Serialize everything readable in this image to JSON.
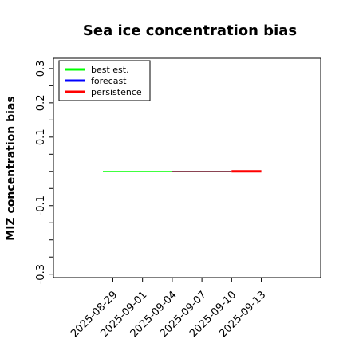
{
  "chart_data": {
    "type": "line",
    "title": "Sea ice concentration bias",
    "ylabel": "MIZ concentration bias",
    "xlabel": "",
    "ylim": [
      -0.31,
      0.33
    ],
    "y_ticks": [
      {
        "value": 0.3,
        "label": "0.3"
      },
      {
        "value": 0.25,
        "label": ""
      },
      {
        "value": 0.2,
        "label": "0.2"
      },
      {
        "value": 0.15,
        "label": ""
      },
      {
        "value": 0.1,
        "label": "0.1"
      },
      {
        "value": 0.05,
        "label": ""
      },
      {
        "value": 0.0,
        "label": ""
      },
      {
        "value": -0.05,
        "label": ""
      },
      {
        "value": -0.1,
        "label": "-0.1"
      },
      {
        "value": -0.15,
        "label": ""
      },
      {
        "value": -0.2,
        "label": ""
      },
      {
        "value": -0.25,
        "label": ""
      },
      {
        "value": -0.3,
        "label": "-0.3"
      }
    ],
    "x_range": [
      "2025-08-23",
      "2025-09-19"
    ],
    "x_ticks": [
      {
        "date": "2025-08-29",
        "label": "2025-08-29",
        "color": "#000000"
      },
      {
        "date": "2025-09-01",
        "label": "2025-09-01",
        "color": "#000000"
      },
      {
        "date": "2025-09-04",
        "label": "2025-09-04",
        "color": "#228b22"
      },
      {
        "date": "2025-09-07",
        "label": "2025-09-07",
        "color": "#000000"
      },
      {
        "date": "2025-09-10",
        "label": "2025-09-10",
        "color": "#000000"
      },
      {
        "date": "2025-09-13",
        "label": "2025-09-13",
        "color": "#000000"
      }
    ],
    "series": [
      {
        "name": "best est.",
        "color": "#00ff00",
        "legend_color": "#00ff00",
        "x": [
          "2025-08-28",
          "2025-09-04"
        ],
        "y": [
          0.0,
          0.0
        ],
        "width": 1.2
      },
      {
        "name": "forecast",
        "color": "#7a2a3a",
        "legend_color": "#0000ff",
        "x": [
          "2025-09-04",
          "2025-09-10"
        ],
        "y": [
          0.0,
          0.0
        ],
        "width": 1.4
      },
      {
        "name": "persistence",
        "color": "#ff0000",
        "legend_color": "#ff0000",
        "x": [
          "2025-09-10",
          "2025-09-13"
        ],
        "y": [
          0.0,
          0.0
        ],
        "width": 3
      }
    ],
    "legend_position": "top-left",
    "grid": false
  }
}
